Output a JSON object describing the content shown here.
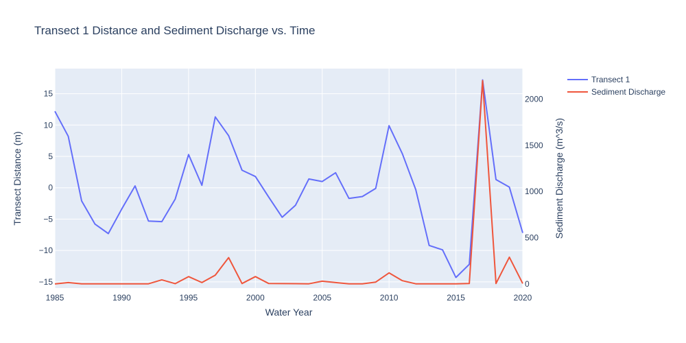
{
  "chart_data": {
    "type": "line",
    "title": "Transect 1 Distance and Sediment Discharge vs. Time",
    "xlabel": "Water Year",
    "ylabel": "Transect Distance (m)",
    "y2label": "Sediment Discharge (m^3/s)",
    "xlim": [
      1985,
      2020
    ],
    "ylim": [
      -16,
      19
    ],
    "y2lim": [
      -45,
      2330
    ],
    "xticks": [
      "1985",
      "1990",
      "1995",
      "2000",
      "2005",
      "2010",
      "2015",
      "2020"
    ],
    "yticks": [
      "−15",
      "−10",
      "−5",
      "0",
      "5",
      "10",
      "15"
    ],
    "y2ticks": [
      "0",
      "500",
      "1000",
      "1500",
      "2000"
    ],
    "legend_position": "top-right",
    "grid": true,
    "colors": {
      "transect": "#636efa",
      "discharge": "#ef553b",
      "plot_bg": "#e5ecf6"
    },
    "x": [
      1985,
      1986,
      1987,
      1988,
      1989,
      1990,
      1991,
      1992,
      1993,
      1994,
      1995,
      1996,
      1997,
      1998,
      1999,
      2000,
      2001,
      2002,
      2003,
      2004,
      2005,
      2006,
      2007,
      2008,
      2009,
      2010,
      2011,
      2012,
      2013,
      2014,
      2015,
      2016,
      2017,
      2018,
      2019,
      2020
    ],
    "series": [
      {
        "name": "Transect 1",
        "axis": "y",
        "values": [
          12.2,
          8.2,
          -2.1,
          -5.8,
          -7.3,
          -3.4,
          0.3,
          -5.3,
          -5.4,
          -1.8,
          5.3,
          0.4,
          11.3,
          8.3,
          2.8,
          1.8,
          -1.5,
          -4.7,
          -2.8,
          1.4,
          1.0,
          2.4,
          -1.7,
          -1.4,
          -0.1,
          9.9,
          5.4,
          -0.3,
          -9.2,
          -9.9,
          -14.3,
          -12.2,
          17.2,
          1.3,
          0.1,
          -7.2
        ]
      },
      {
        "name": "Sediment Discharge",
        "axis": "y2",
        "values": [
          0,
          15,
          2,
          2,
          2,
          2,
          2,
          2,
          45,
          3,
          80,
          15,
          95,
          285,
          5,
          80,
          5,
          4,
          3,
          2,
          30,
          15,
          2,
          2,
          20,
          120,
          35,
          2,
          2,
          2,
          2,
          5,
          2200,
          5,
          290,
          5
        ]
      }
    ]
  }
}
